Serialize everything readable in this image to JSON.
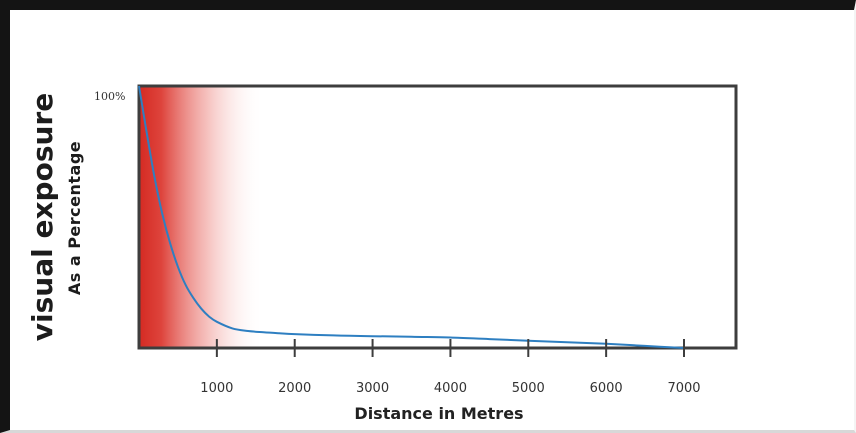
{
  "chart_data": {
    "type": "area",
    "title": "",
    "xlabel": "Distance in Metres",
    "ylabel": "visual exposure",
    "ylabel_sub": "As a Percentage",
    "ytick_label": "100%",
    "xlim": [
      0,
      7000
    ],
    "ylim": [
      0,
      100
    ],
    "xticks": [
      1000,
      2000,
      3000,
      4000,
      5000,
      6000,
      7000
    ],
    "xtick_labels": [
      "1000",
      "2000",
      "3000",
      "4000",
      "5000",
      "6000",
      "7000"
    ],
    "grid": false,
    "legend": "none",
    "series": [
      {
        "x": [
          0,
          100,
          200,
          300,
          400,
          500,
          600,
          700,
          800,
          900,
          1000,
          1200,
          1400,
          1600,
          1800,
          2000,
          2500,
          3000,
          3500,
          4000,
          4500,
          5000,
          5500,
          6000,
          6500,
          7000
        ],
        "y": [
          100,
          82,
          65,
          51,
          40,
          31,
          24,
          19,
          15,
          12,
          10,
          7.5,
          6.5,
          6,
          5.6,
          5.3,
          4.8,
          4.5,
          4.3,
          4,
          3.4,
          2.8,
          2.2,
          1.6,
          0.8,
          0
        ],
        "color": "#2e7fc1"
      }
    ],
    "shading": {
      "from_x": 0,
      "to_x": 1600,
      "start_color": "#d42a22",
      "end_color": "#ffffff"
    },
    "colors": {
      "axis": "#3d3d3d",
      "line": "#2e7fc1",
      "frame": "#141414"
    }
  }
}
